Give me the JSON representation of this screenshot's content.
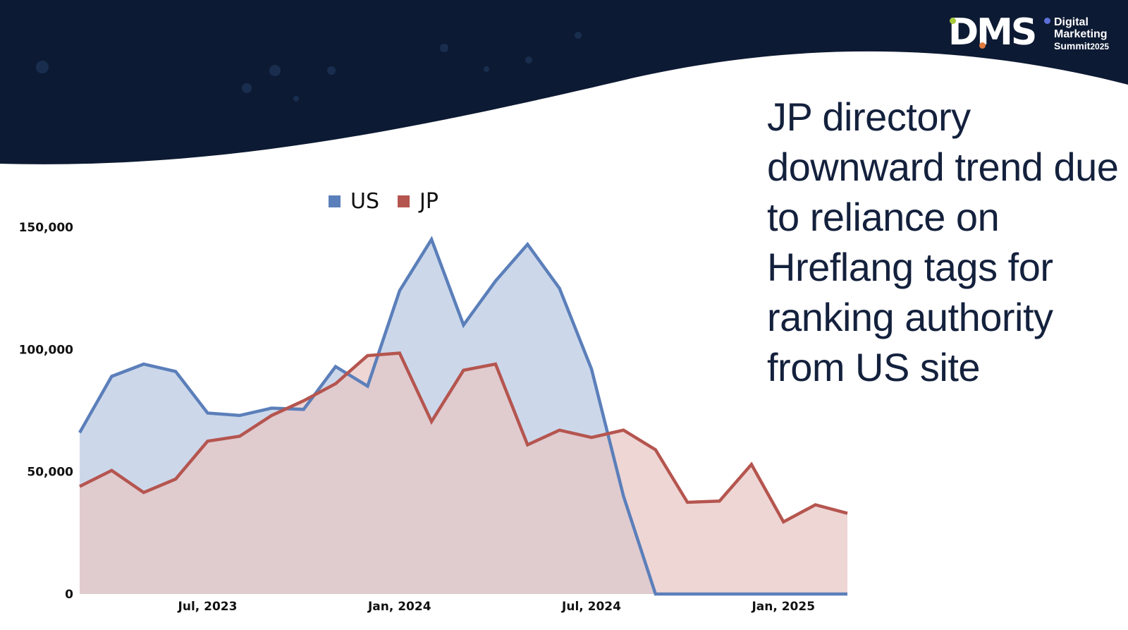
{
  "headline": "JP directory downward trend due to reliance on Hreflang tags for ranking authority from US site",
  "logo": {
    "mark": "DMS",
    "line1": "Digital",
    "line2": "Marketing",
    "line3": "Summit",
    "year": "2025"
  },
  "colors": {
    "background_dark": "#0d1a33",
    "headline": "#14213d",
    "us": "#5b7fba",
    "jp": "#b5554f",
    "logo_green": "#a6c93a",
    "logo_orange": "#e07a3f",
    "logo_blue": "#5b6fd8"
  },
  "chart_data": {
    "type": "area",
    "legend_position": "top",
    "grid": false,
    "ylim": [
      0,
      150000
    ],
    "yticks": [
      "150,000",
      "100,000",
      "50,000",
      "0"
    ],
    "yticks_values": [
      150000,
      100000,
      50000,
      0
    ],
    "xticks": [
      "Jul, 2023",
      "Jan, 2024",
      "Jul, 2024",
      "Jan, 2025"
    ],
    "xticks_index": [
      4,
      10,
      16,
      22
    ],
    "x": [
      "Mar 2023",
      "Apr 2023",
      "May 2023",
      "Jun 2023",
      "Jul 2023",
      "Aug 2023",
      "Sep 2023",
      "Oct 2023",
      "Nov 2023",
      "Dec 2023",
      "Jan 2024",
      "Feb 2024",
      "Mar 2024",
      "Apr 2024",
      "May 2024",
      "Jun 2024",
      "Jul 2024",
      "Aug 2024",
      "Sep 2024",
      "Oct 2024",
      "Nov 2024",
      "Dec 2024",
      "Jan 2025",
      "Feb 2025",
      "Mar 2025"
    ],
    "series": [
      {
        "name": "US",
        "color": "#5b7fba",
        "fill": "#ccd8ea",
        "values": [
          66000,
          89000,
          94000,
          91000,
          74000,
          73000,
          76000,
          75500,
          93000,
          85000,
          124000,
          145000,
          110000,
          128000,
          143000,
          125000,
          92000,
          40000,
          0,
          0,
          0,
          0,
          0,
          0,
          0
        ]
      },
      {
        "name": "JP",
        "color": "#b5554f",
        "fill": "#e8c6c5",
        "values": [
          44000,
          50500,
          41500,
          47000,
          62500,
          64500,
          73000,
          79000,
          86000,
          97500,
          98500,
          70500,
          91500,
          94000,
          61000,
          67000,
          64000,
          67000,
          59000,
          37500,
          38000,
          53000,
          29500,
          36500,
          33000
        ]
      }
    ]
  }
}
